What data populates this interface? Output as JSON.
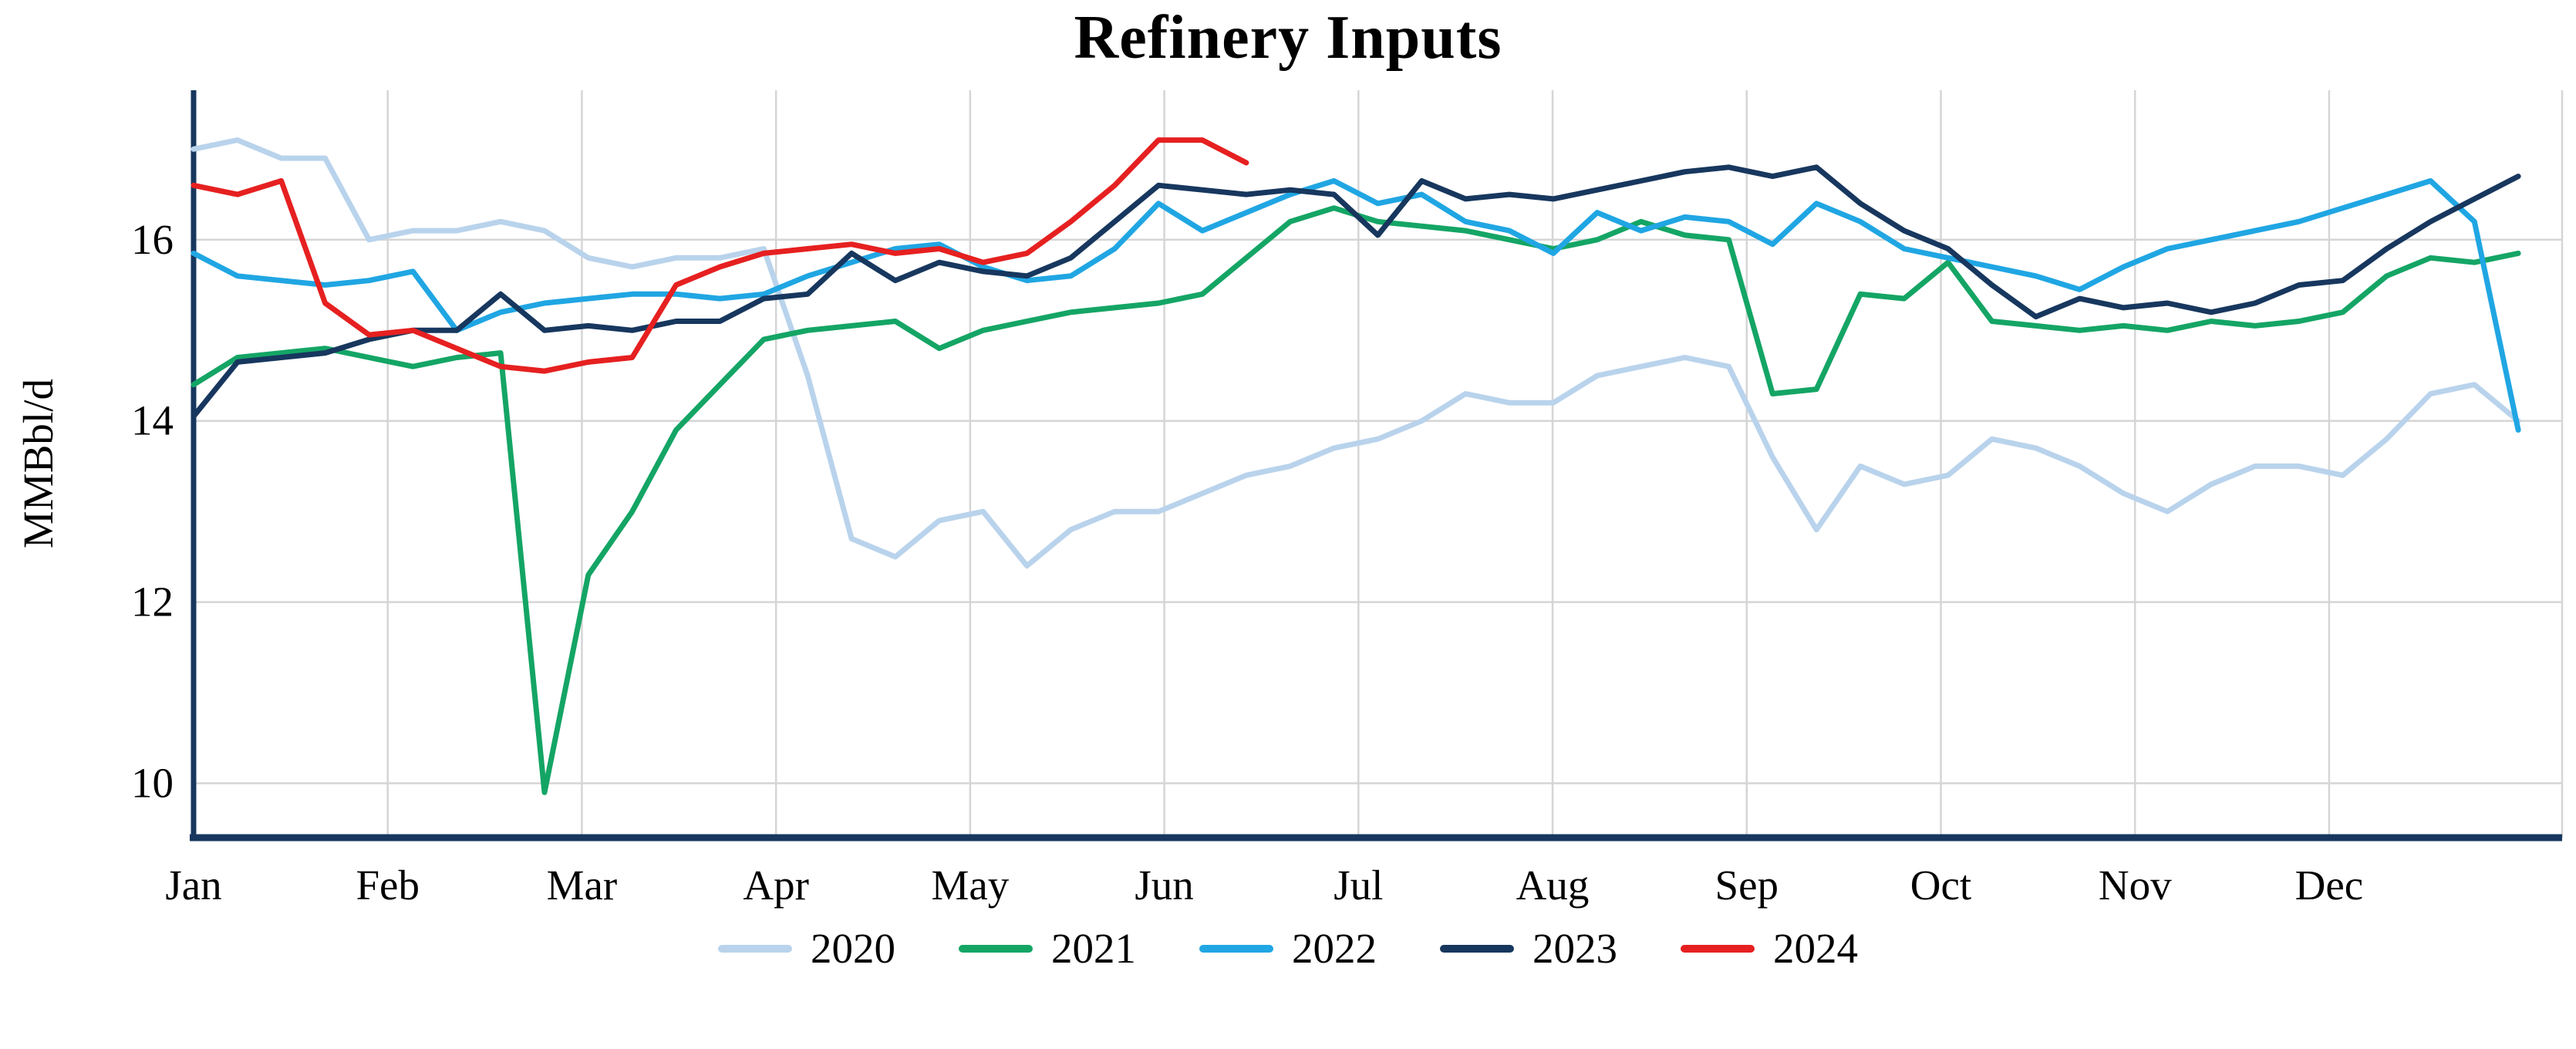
{
  "chart_data": {
    "type": "line",
    "title": "Refinery Inputs",
    "ylabel": "MMBbl/d",
    "xlabel": "",
    "x_unit": "weekly observations, Jan through Dec",
    "x_tick_labels": [
      "Jan",
      "Feb",
      "Mar",
      "Apr",
      "May",
      "Jun",
      "Jul",
      "Aug",
      "Sep",
      "Oct",
      "Nov",
      "Dec"
    ],
    "y_ticks": [
      10,
      12,
      14,
      16
    ],
    "ylim": [
      9.4,
      17.65
    ],
    "grid": true,
    "legend_position": "bottom",
    "style": {
      "grid_color": "#d5d5d5",
      "axis_color": "#17375e",
      "text_color": "#000000",
      "background": "#ffffff"
    },
    "series": [
      {
        "name": "2020",
        "color": "#b9d3ec",
        "values": [
          17.0,
          17.1,
          16.9,
          16.9,
          16.0,
          16.1,
          16.1,
          16.2,
          16.1,
          15.8,
          15.7,
          15.8,
          15.8,
          15.9,
          14.5,
          12.7,
          12.5,
          12.9,
          13.0,
          12.4,
          12.8,
          13.0,
          13.0,
          13.2,
          13.4,
          13.5,
          13.7,
          13.8,
          14.0,
          14.3,
          14.2,
          14.2,
          14.5,
          14.6,
          14.7,
          14.6,
          13.6,
          12.8,
          13.5,
          13.3,
          13.4,
          13.8,
          13.7,
          13.5,
          13.2,
          13.0,
          13.3,
          13.5,
          13.5,
          13.4,
          13.8,
          14.3,
          14.4,
          14.0
        ]
      },
      {
        "name": "2021",
        "color": "#14a565",
        "values": [
          14.4,
          14.7,
          14.75,
          14.8,
          14.7,
          14.6,
          14.7,
          14.75,
          9.9,
          12.3,
          13.0,
          13.9,
          14.4,
          14.9,
          15.0,
          15.05,
          15.1,
          14.8,
          15.0,
          15.1,
          15.2,
          15.25,
          15.3,
          15.4,
          15.8,
          16.2,
          16.35,
          16.2,
          16.15,
          16.1,
          16.0,
          15.9,
          16.0,
          16.2,
          16.05,
          16.0,
          14.3,
          14.35,
          15.4,
          15.35,
          15.75,
          15.1,
          15.05,
          15.0,
          15.05,
          15.0,
          15.1,
          15.05,
          15.1,
          15.2,
          15.6,
          15.8,
          15.75,
          15.85
        ]
      },
      {
        "name": "2022",
        "color": "#20a6e3",
        "values": [
          15.85,
          15.6,
          15.55,
          15.5,
          15.55,
          15.65,
          15.0,
          15.2,
          15.3,
          15.35,
          15.4,
          15.4,
          15.35,
          15.4,
          15.6,
          15.75,
          15.9,
          15.95,
          15.7,
          15.55,
          15.6,
          15.9,
          16.4,
          16.1,
          16.3,
          16.5,
          16.65,
          16.4,
          16.5,
          16.2,
          16.1,
          15.85,
          16.3,
          16.1,
          16.25,
          16.2,
          15.95,
          16.4,
          16.2,
          15.9,
          15.8,
          15.7,
          15.6,
          15.45,
          15.7,
          15.9,
          16.0,
          16.1,
          16.2,
          16.35,
          16.5,
          16.65,
          16.2,
          13.9
        ]
      },
      {
        "name": "2023",
        "color": "#17375e",
        "values": [
          14.05,
          14.65,
          14.7,
          14.75,
          14.9,
          15.0,
          15.0,
          15.4,
          15.0,
          15.05,
          15.0,
          15.1,
          15.1,
          15.35,
          15.4,
          15.85,
          15.55,
          15.75,
          15.65,
          15.6,
          15.8,
          16.2,
          16.6,
          16.55,
          16.5,
          16.55,
          16.5,
          16.05,
          16.65,
          16.45,
          16.5,
          16.45,
          16.55,
          16.65,
          16.75,
          16.8,
          16.7,
          16.8,
          16.4,
          16.1,
          15.9,
          15.5,
          15.15,
          15.35,
          15.25,
          15.3,
          15.2,
          15.3,
          15.5,
          15.55,
          15.9,
          16.2,
          16.45,
          16.7
        ]
      },
      {
        "name": "2024",
        "color": "#e62020",
        "values": [
          16.6,
          16.5,
          16.65,
          15.3,
          14.95,
          15.0,
          14.8,
          14.6,
          14.55,
          14.65,
          14.7,
          15.5,
          15.7,
          15.85,
          15.9,
          15.95,
          15.85,
          15.9,
          15.75,
          15.85,
          16.2,
          16.6,
          17.1,
          17.1,
          16.85
        ]
      }
    ]
  }
}
